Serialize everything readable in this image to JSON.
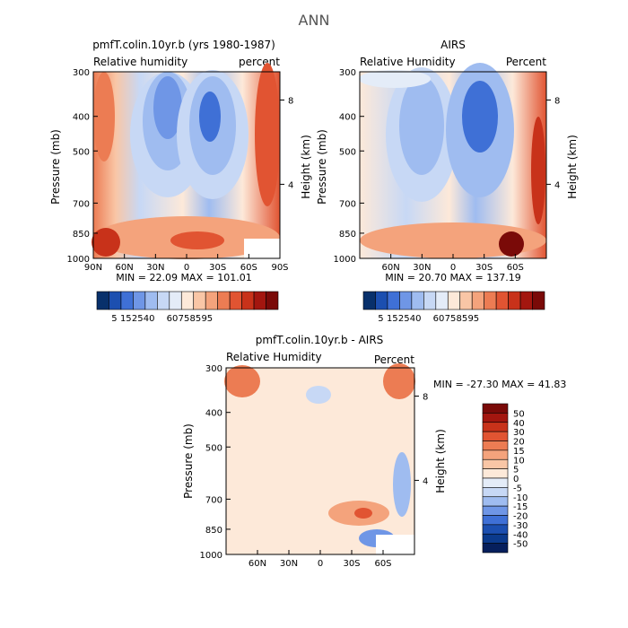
{
  "figure_title": "ANN",
  "chart_data": [
    {
      "type": "heatmap",
      "id": "model",
      "title": "pmfT.colin.10yr.b (yrs 1980-1987)",
      "left_label": "Relative humidity",
      "right_label": "percent",
      "ylabel": "Pressure (mb)",
      "y2label": "Height (km)",
      "x_ticks": [
        "90N",
        "60N",
        "30N",
        "0",
        "30S",
        "60S",
        "90S"
      ],
      "y_ticks": [
        "300",
        "400",
        "500",
        "700",
        "850",
        "1000"
      ],
      "y2_ticks": [
        "8",
        "4"
      ],
      "stats": "MIN =  22.09   MAX = 101.01",
      "min": 22.09,
      "max": 101.01,
      "xlim": [
        90,
        -90
      ],
      "ylim": [
        1000,
        300
      ]
    },
    {
      "type": "heatmap",
      "id": "airs",
      "title": "AIRS",
      "left_label": "Relative Humidity",
      "right_label": "Percent",
      "ylabel": "Pressure (mb)",
      "y2label": "Height (km)",
      "x_ticks": [
        "60N",
        "30N",
        "0",
        "30S",
        "60S"
      ],
      "y_ticks": [
        "300",
        "400",
        "500",
        "700",
        "850",
        "1000"
      ],
      "y2_ticks": [
        "8",
        "4"
      ],
      "stats": "MIN =  20.70   MAX = 137.19",
      "min": 20.7,
      "max": 137.19,
      "xlim": [
        90,
        -90
      ],
      "ylim": [
        1000,
        300
      ]
    },
    {
      "type": "heatmap",
      "id": "diff",
      "title": "pmfT.colin.10yr.b - AIRS",
      "left_label": "Relative Humidity",
      "right_label": "Percent",
      "ylabel": "Pressure (mb)",
      "y2label": "Height (km)",
      "x_ticks": [
        "60N",
        "30N",
        "0",
        "30S",
        "60S"
      ],
      "y_ticks": [
        "300",
        "400",
        "500",
        "700",
        "850",
        "1000"
      ],
      "y2_ticks": [
        "8",
        "4"
      ],
      "stats": "MIN = -27.30   MAX =  41.83",
      "min": -27.3,
      "max": 41.83,
      "xlim": [
        90,
        -90
      ],
      "ylim": [
        1000,
        300
      ]
    }
  ],
  "colorbars": {
    "absolute": {
      "labels": [
        "5",
        "15",
        "25",
        "40",
        "60",
        "75",
        "85",
        "95"
      ],
      "colors": [
        "#08306b",
        "#1c4fb0",
        "#3f70d6",
        "#6f96e6",
        "#9fbcf0",
        "#c7d8f5",
        "#e4ecf8",
        "#fde9d9",
        "#f9c6a6",
        "#f4a37c",
        "#ec7c53",
        "#e15432",
        "#c8321a",
        "#a3160f",
        "#7a0a08"
      ]
    },
    "difference": {
      "labels": [
        "50",
        "40",
        "30",
        "20",
        "15",
        "10",
        "5",
        "0",
        "-5",
        "-10",
        "-15",
        "-20",
        "-30",
        "-40",
        "-50"
      ],
      "colors": [
        "#7a0a08",
        "#a3160f",
        "#c8321a",
        "#e15432",
        "#ec7c53",
        "#f4a37c",
        "#f9c6a6",
        "#fde9d9",
        "#e4ecf8",
        "#c7d8f5",
        "#9fbcf0",
        "#6f96e6",
        "#3f70d6",
        "#1c4fb0",
        "#0b3a8c",
        "#061f5c"
      ]
    }
  }
}
